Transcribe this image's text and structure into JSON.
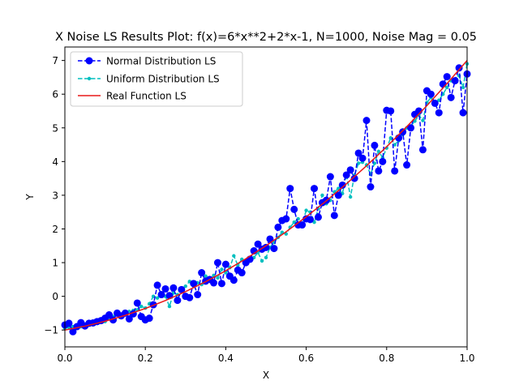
{
  "chart_data": {
    "type": "line",
    "title": "X Noise LS Results Plot: f(x)=6*x**2+2*x-1, N=1000, Noise Mag = 0.05",
    "xlabel": "X",
    "ylabel": "Y",
    "xlim": [
      0.0,
      1.0
    ],
    "ylim": [
      -1.5,
      7.4
    ],
    "x_ticks": [
      "0.0",
      "0.2",
      "0.4",
      "0.6",
      "0.8",
      "1.0"
    ],
    "y_ticks": [
      "−1",
      "0",
      "1",
      "2",
      "3",
      "4",
      "5",
      "6",
      "7"
    ],
    "x_tick_values": [
      0.0,
      0.2,
      0.4,
      0.6,
      0.8,
      1.0
    ],
    "y_tick_values": [
      -1,
      0,
      1,
      2,
      3,
      4,
      5,
      6,
      7
    ],
    "grid": false,
    "legend_position": "top-left",
    "series": [
      {
        "name": "Normal Distribution LS",
        "color": "#0000ff",
        "style": "dashed",
        "marker": "circle",
        "x": [
          0.0,
          0.01,
          0.02,
          0.03,
          0.04,
          0.05,
          0.06,
          0.07,
          0.08,
          0.09,
          0.1,
          0.11,
          0.12,
          0.13,
          0.14,
          0.15,
          0.16,
          0.17,
          0.18,
          0.19,
          0.2,
          0.21,
          0.22,
          0.23,
          0.24,
          0.25,
          0.26,
          0.27,
          0.28,
          0.29,
          0.3,
          0.31,
          0.32,
          0.33,
          0.34,
          0.35,
          0.36,
          0.37,
          0.38,
          0.39,
          0.4,
          0.41,
          0.42,
          0.43,
          0.44,
          0.45,
          0.46,
          0.47,
          0.48,
          0.49,
          0.5,
          0.51,
          0.52,
          0.53,
          0.54,
          0.55,
          0.56,
          0.57,
          0.58,
          0.59,
          0.6,
          0.61,
          0.62,
          0.63,
          0.64,
          0.65,
          0.66,
          0.67,
          0.68,
          0.69,
          0.7,
          0.71,
          0.72,
          0.73,
          0.74,
          0.75,
          0.76,
          0.77,
          0.78,
          0.79,
          0.8,
          0.81,
          0.82,
          0.83,
          0.84,
          0.85,
          0.86,
          0.87,
          0.88,
          0.89,
          0.9,
          0.91,
          0.92,
          0.93,
          0.94,
          0.95,
          0.96,
          0.97,
          0.98,
          0.99,
          1.0
        ],
        "y": [
          -0.85,
          -0.8,
          -1.05,
          -0.9,
          -0.78,
          -0.88,
          -0.8,
          -0.79,
          -0.75,
          -0.72,
          -0.65,
          -0.55,
          -0.7,
          -0.5,
          -0.58,
          -0.5,
          -0.67,
          -0.52,
          -0.2,
          -0.6,
          -0.7,
          -0.65,
          -0.25,
          0.33,
          0.05,
          0.22,
          0.02,
          0.25,
          -0.12,
          0.2,
          0.0,
          -0.04,
          0.38,
          0.05,
          0.7,
          0.45,
          0.5,
          0.4,
          1.0,
          0.38,
          0.95,
          0.6,
          0.48,
          0.78,
          0.7,
          1.0,
          1.1,
          1.35,
          1.55,
          1.4,
          1.45,
          1.7,
          1.42,
          2.05,
          2.25,
          2.3,
          3.2,
          2.58,
          2.12,
          2.12,
          2.3,
          2.28,
          3.2,
          2.35,
          2.78,
          2.85,
          3.55,
          2.4,
          3.0,
          3.3,
          3.6,
          3.75,
          3.5,
          4.25,
          4.1,
          5.22,
          3.25,
          4.48,
          3.72,
          4.0,
          5.52,
          5.5,
          3.72,
          4.7,
          4.88,
          3.9,
          5.0,
          5.4,
          5.5,
          4.35,
          6.1,
          6.0,
          5.73,
          5.45,
          6.3,
          6.52,
          5.9,
          6.4,
          6.78,
          5.45,
          6.6
        ]
      },
      {
        "name": "Uniform Distribution LS",
        "color": "#00bfbf",
        "style": "dashed",
        "marker": "dot",
        "x": [
          0.0,
          0.01,
          0.02,
          0.03,
          0.04,
          0.05,
          0.06,
          0.07,
          0.08,
          0.09,
          0.1,
          0.11,
          0.12,
          0.13,
          0.14,
          0.15,
          0.16,
          0.17,
          0.18,
          0.19,
          0.2,
          0.21,
          0.22,
          0.23,
          0.24,
          0.25,
          0.26,
          0.27,
          0.28,
          0.29,
          0.3,
          0.31,
          0.32,
          0.33,
          0.34,
          0.35,
          0.36,
          0.37,
          0.38,
          0.39,
          0.4,
          0.41,
          0.42,
          0.43,
          0.44,
          0.45,
          0.46,
          0.47,
          0.48,
          0.49,
          0.5,
          0.51,
          0.52,
          0.53,
          0.54,
          0.55,
          0.56,
          0.57,
          0.58,
          0.59,
          0.6,
          0.61,
          0.62,
          0.63,
          0.64,
          0.65,
          0.66,
          0.67,
          0.68,
          0.69,
          0.7,
          0.71,
          0.72,
          0.73,
          0.74,
          0.75,
          0.76,
          0.77,
          0.78,
          0.79,
          0.8,
          0.81,
          0.82,
          0.83,
          0.84,
          0.85,
          0.86,
          0.87,
          0.88,
          0.89,
          0.9,
          0.91,
          0.92,
          0.93,
          0.94,
          0.95,
          0.96,
          0.97,
          0.98,
          0.99,
          1.0
        ],
        "y": [
          -0.95,
          -0.92,
          -0.9,
          -0.88,
          -0.9,
          -0.84,
          -0.82,
          -0.8,
          -0.78,
          -0.72,
          -0.75,
          -0.66,
          -0.6,
          -0.55,
          -0.58,
          -0.5,
          -0.45,
          -0.42,
          -0.4,
          -0.3,
          -0.35,
          -0.22,
          0.0,
          -0.05,
          0.1,
          0.0,
          -0.3,
          0.1,
          0.05,
          0.22,
          0.3,
          0.44,
          0.3,
          0.4,
          0.35,
          0.6,
          0.45,
          0.62,
          0.55,
          0.8,
          0.7,
          0.85,
          1.2,
          0.92,
          1.1,
          1.05,
          1.1,
          1.15,
          1.3,
          1.05,
          1.15,
          1.45,
          1.6,
          1.75,
          1.9,
          1.85,
          2.05,
          2.2,
          2.3,
          2.15,
          2.55,
          2.5,
          2.2,
          2.6,
          3.0,
          2.75,
          2.85,
          3.1,
          3.2,
          3.05,
          3.62,
          2.95,
          3.6,
          3.95,
          3.98,
          3.9,
          3.62,
          3.95,
          4.3,
          4.12,
          4.4,
          4.7,
          4.5,
          4.62,
          4.8,
          5.0,
          5.05,
          5.2,
          5.38,
          5.22,
          5.75,
          5.9,
          5.75,
          5.82,
          6.0,
          6.2,
          6.4,
          6.35,
          6.55,
          6.2,
          6.9
        ]
      },
      {
        "name": "Real Function LS",
        "color": "#e81818",
        "style": "solid",
        "marker": "none",
        "x": [
          0.0,
          0.05,
          0.1,
          0.15,
          0.2,
          0.25,
          0.3,
          0.35,
          0.4,
          0.45,
          0.5,
          0.55,
          0.6,
          0.65,
          0.7,
          0.75,
          0.8,
          0.85,
          0.9,
          0.95,
          1.0
        ],
        "y": [
          -1.0,
          -0.885,
          -0.74,
          -0.565,
          -0.36,
          -0.125,
          0.14,
          0.435,
          0.76,
          1.115,
          1.5,
          1.915,
          2.36,
          2.835,
          3.34,
          3.875,
          4.44,
          5.035,
          5.66,
          6.315,
          7.0
        ]
      }
    ]
  }
}
